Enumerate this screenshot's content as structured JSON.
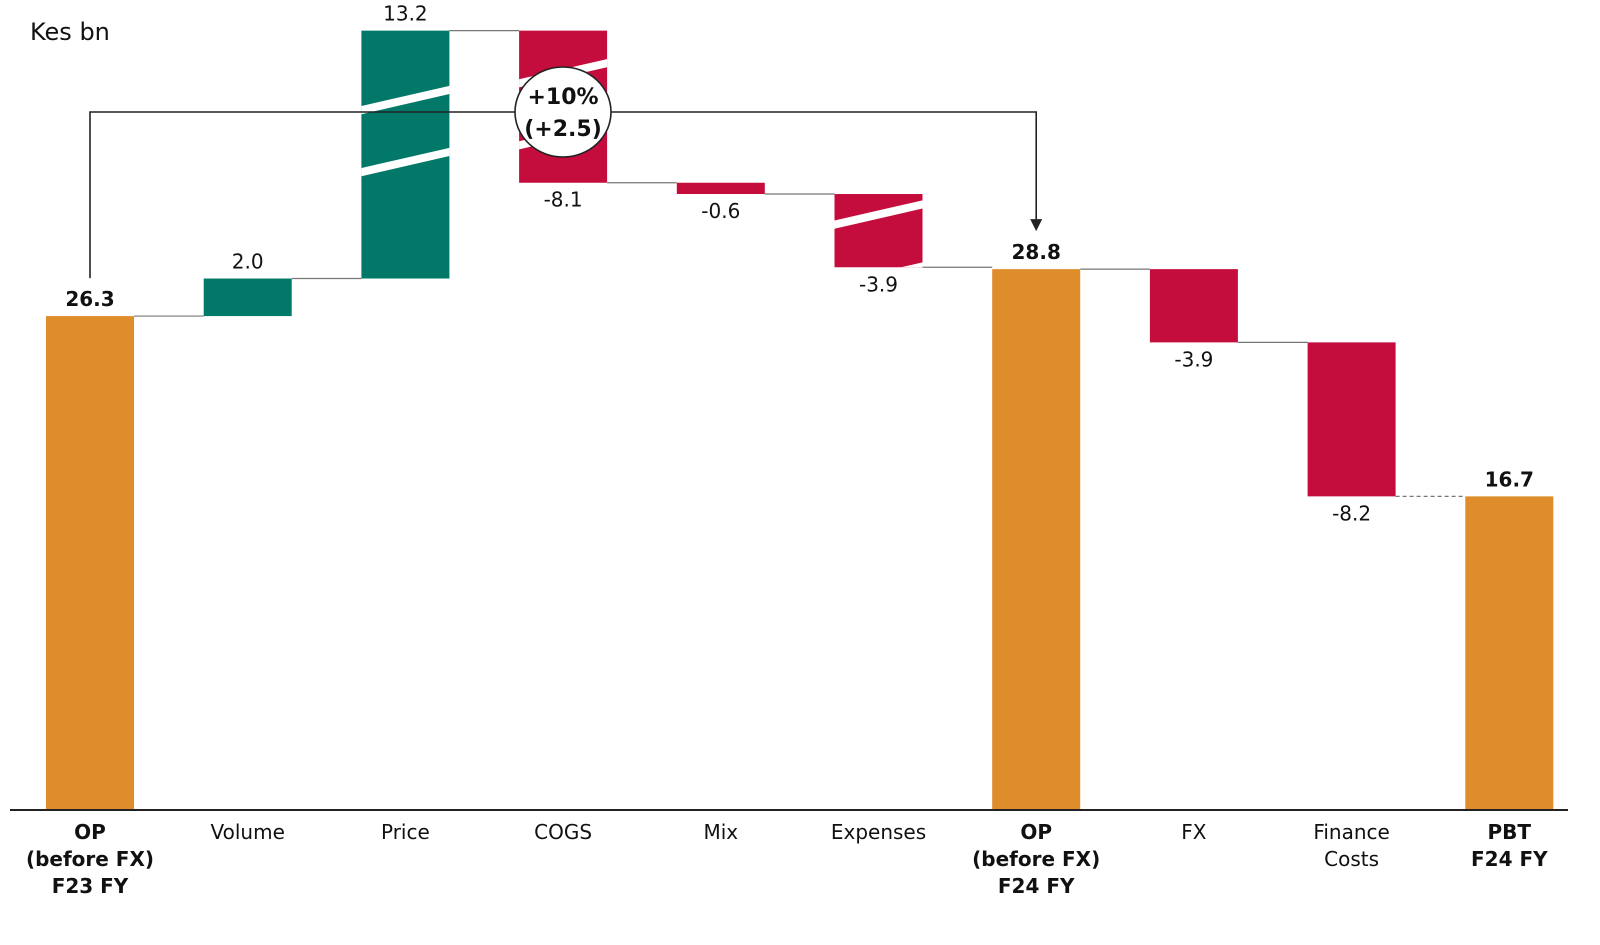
{
  "chart_data": {
    "type": "waterfall",
    "unit_label": "Kes bn",
    "colors": {
      "total": "#DF8C2A",
      "increase": "#027868",
      "decrease": "#C40D3C",
      "axis": "#222222",
      "text": "#111111"
    },
    "steps": [
      {
        "label_lines": [
          "OP",
          "(before FX)",
          "F23 FY"
        ],
        "bold": true,
        "kind": "total",
        "value": 26.3,
        "value_label": "26.3",
        "hatched": false
      },
      {
        "label_lines": [
          "Volume"
        ],
        "bold": false,
        "kind": "increase",
        "value": 2.0,
        "value_label": "2.0",
        "hatched": false
      },
      {
        "label_lines": [
          "Price"
        ],
        "bold": false,
        "kind": "increase",
        "value": 13.2,
        "value_label": "13.2",
        "hatched": true
      },
      {
        "label_lines": [
          "COGS"
        ],
        "bold": false,
        "kind": "decrease",
        "value": -8.1,
        "value_label": "-8.1",
        "hatched": true
      },
      {
        "label_lines": [
          "Mix"
        ],
        "bold": false,
        "kind": "decrease",
        "value": -0.6,
        "value_label": "-0.6",
        "hatched": false
      },
      {
        "label_lines": [
          "Expenses"
        ],
        "bold": false,
        "kind": "decrease",
        "value": -3.9,
        "value_label": "-3.9",
        "hatched": true
      },
      {
        "label_lines": [
          "OP",
          "(before FX)",
          "F24 FY"
        ],
        "bold": true,
        "kind": "total",
        "value": 28.8,
        "value_label": "28.8",
        "hatched": false
      },
      {
        "label_lines": [
          "FX"
        ],
        "bold": false,
        "kind": "decrease",
        "value": -3.9,
        "value_label": "-3.9",
        "hatched": false
      },
      {
        "label_lines": [
          "Finance",
          "Costs"
        ],
        "bold": false,
        "kind": "decrease",
        "value": -8.2,
        "value_label": "-8.2",
        "hatched": false
      },
      {
        "label_lines": [
          "PBT",
          "F24 FY"
        ],
        "bold": true,
        "kind": "total",
        "value": 16.7,
        "value_label": "16.7",
        "hatched": false
      }
    ],
    "bracket": {
      "from_step": 0,
      "to_step": 6,
      "label_lines": [
        "+10%",
        "(+2.5)"
      ]
    },
    "ylim": [
      0,
      30
    ]
  }
}
